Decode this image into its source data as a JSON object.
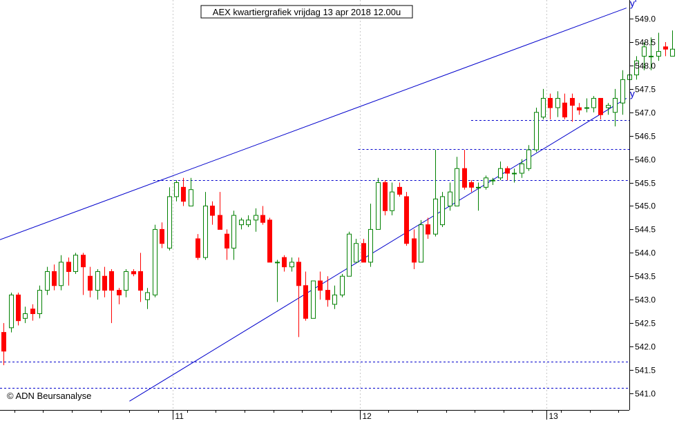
{
  "chart_data": {
    "type": "candlestick",
    "title": "AEX kwartiergrafiek vrijdag 13 apr 2018 12.00u",
    "credit": "© ADN Beursanalyse",
    "ylim": [
      540.85,
      549.4
    ],
    "y_ticks": [
      "541.0",
      "541.5",
      "542.0",
      "542.5",
      "543.0",
      "543.5",
      "544.0",
      "544.5",
      "545.0",
      "545.5",
      "546.0",
      "546.5",
      "547.0",
      "547.5",
      "548.0",
      "548.5",
      "549.0"
    ],
    "x_range": [
      -0.5,
      87
    ],
    "x_dates": [
      {
        "label": "11",
        "x": 23.5
      },
      {
        "label": "12",
        "x": 49.5
      },
      {
        "label": "13",
        "x": 75.5
      }
    ],
    "colors": {
      "up": "#008000",
      "down": "#ff0000",
      "trend": "#0000cc",
      "level": "#0000cc",
      "grid": "#c8c8c8"
    },
    "candles": [
      [
        542.3,
        541.9,
        542.5,
        541.6
      ],
      [
        542.4,
        543.1,
        543.15,
        542.3
      ],
      [
        543.1,
        542.55,
        543.15,
        542.45
      ],
      [
        542.6,
        542.7,
        542.85,
        542.5
      ],
      [
        542.8,
        542.7,
        542.9,
        542.55
      ],
      [
        542.7,
        543.2,
        543.3,
        542.6
      ],
      [
        543.2,
        543.6,
        543.7,
        543.1
      ],
      [
        543.6,
        543.3,
        543.75,
        543.2
      ],
      [
        543.3,
        543.8,
        543.95,
        543.2
      ],
      [
        543.8,
        543.6,
        543.9,
        543.3
      ],
      [
        543.6,
        543.95,
        544.0,
        543.55
      ],
      [
        543.95,
        543.7,
        544.0,
        543.1
      ],
      [
        543.5,
        543.2,
        543.7,
        543.05
      ],
      [
        543.2,
        543.6,
        543.65,
        543.0
      ],
      [
        543.5,
        543.2,
        543.7,
        543.05
      ],
      [
        543.6,
        543.2,
        543.65,
        542.5
      ],
      [
        543.2,
        543.1,
        543.25,
        542.9
      ],
      [
        543.2,
        543.6,
        543.65,
        543.05
      ],
      [
        543.6,
        543.55,
        543.65,
        543.5
      ],
      [
        543.6,
        543.2,
        544.0,
        542.95
      ],
      [
        543.0,
        543.15,
        543.25,
        542.8
      ],
      [
        543.1,
        544.5,
        544.6,
        543.05
      ],
      [
        544.5,
        544.2,
        544.65,
        544.1
      ],
      [
        544.1,
        545.2,
        545.4,
        544.05
      ],
      [
        545.2,
        545.5,
        545.55,
        545.1
      ],
      [
        545.4,
        545.1,
        545.6,
        545.0
      ],
      [
        545.0,
        545.35,
        545.6,
        545.0
      ],
      [
        544.3,
        543.9,
        544.4,
        543.85
      ],
      [
        543.9,
        545.0,
        545.3,
        543.85
      ],
      [
        545.0,
        544.8,
        545.1,
        544.6
      ],
      [
        544.8,
        544.5,
        545.3,
        544.5
      ],
      [
        544.4,
        544.1,
        544.5,
        543.85
      ],
      [
        544.1,
        544.8,
        544.9,
        543.85
      ],
      [
        544.6,
        544.7,
        544.75,
        544.5
      ],
      [
        544.6,
        544.7,
        544.8,
        544.55
      ],
      [
        544.7,
        544.8,
        544.95,
        544.45
      ],
      [
        544.8,
        544.65,
        545.0,
        544.6
      ],
      [
        544.7,
        543.8,
        544.75,
        543.8
      ],
      [
        543.8,
        543.8,
        543.85,
        542.95
      ],
      [
        543.9,
        543.7,
        543.95,
        543.6
      ],
      [
        543.7,
        543.8,
        543.9,
        543.6
      ],
      [
        543.8,
        543.3,
        543.9,
        542.2
      ],
      [
        543.3,
        542.6,
        543.6,
        542.55
      ],
      [
        542.6,
        543.4,
        543.4,
        542.6
      ],
      [
        543.4,
        543.2,
        543.6,
        543.0
      ],
      [
        543.2,
        543.0,
        543.5,
        542.85
      ],
      [
        542.9,
        543.1,
        543.3,
        542.8
      ],
      [
        543.1,
        543.5,
        543.55,
        543.05
      ],
      [
        543.5,
        544.4,
        544.45,
        543.5
      ],
      [
        543.8,
        544.2,
        544.3,
        543.8
      ],
      [
        544.2,
        543.8,
        544.3,
        543.8
      ],
      [
        543.8,
        544.5,
        545.05,
        543.7
      ],
      [
        544.5,
        545.5,
        545.6,
        544.5
      ],
      [
        545.5,
        544.9,
        545.55,
        544.8
      ],
      [
        544.9,
        545.3,
        545.5,
        544.8
      ],
      [
        545.4,
        545.25,
        545.5,
        545.2
      ],
      [
        545.2,
        544.2,
        545.3,
        544.15
      ],
      [
        544.3,
        543.8,
        544.5,
        543.65
      ],
      [
        543.8,
        544.6,
        544.7,
        543.8
      ],
      [
        544.6,
        544.4,
        544.75,
        544.3
      ],
      [
        544.4,
        545.15,
        546.2,
        544.35
      ],
      [
        544.6,
        545.2,
        545.3,
        544.55
      ],
      [
        545.0,
        545.3,
        545.5,
        544.9
      ],
      [
        545.0,
        545.8,
        546.05,
        545.0
      ],
      [
        545.8,
        545.4,
        546.2,
        545.35
      ],
      [
        545.5,
        545.4,
        545.55,
        545.3
      ],
      [
        545.4,
        545.4,
        545.5,
        544.9
      ],
      [
        545.4,
        545.6,
        545.65,
        545.35
      ],
      [
        545.55,
        545.55,
        545.6,
        545.45
      ],
      [
        545.6,
        545.8,
        545.95,
        545.55
      ],
      [
        545.8,
        545.7,
        545.85,
        545.55
      ],
      [
        545.7,
        545.7,
        545.8,
        545.5
      ],
      [
        545.7,
        545.9,
        546.0,
        545.6
      ],
      [
        545.8,
        546.2,
        546.3,
        545.75
      ],
      [
        546.2,
        547.0,
        547.1,
        546.15
      ],
      [
        546.9,
        547.3,
        547.5,
        546.85
      ],
      [
        547.3,
        547.1,
        547.4,
        546.85
      ],
      [
        547.1,
        547.3,
        547.45,
        546.9
      ],
      [
        547.2,
        546.9,
        547.4,
        546.85
      ],
      [
        547.3,
        547.15,
        547.4,
        546.8
      ],
      [
        547.1,
        547.05,
        547.2,
        546.95
      ],
      [
        547.1,
        547.1,
        547.3,
        547.0
      ],
      [
        547.1,
        547.3,
        547.35,
        547.0
      ],
      [
        547.3,
        546.95,
        547.3,
        546.85
      ],
      [
        547.1,
        547.15,
        547.2,
        546.95
      ],
      [
        547.0,
        547.3,
        547.5,
        546.7
      ],
      [
        547.2,
        547.7,
        547.9,
        546.95
      ],
      [
        547.7,
        547.8,
        547.95,
        547.65
      ],
      [
        547.8,
        548.1,
        548.2,
        547.7
      ],
      [
        548.2,
        548.4,
        548.5,
        547.9
      ],
      [
        548.2,
        548.2,
        548.6,
        547.9
      ],
      [
        548.2,
        548.3,
        548.7,
        548.1
      ],
      [
        548.4,
        548.35,
        548.5,
        548.2
      ],
      [
        548.2,
        548.35,
        548.75,
        548.2
      ],
      [
        548.3,
        547.9,
        548.4,
        547.8
      ],
      [
        547.9,
        548.3,
        548.45,
        547.85
      ],
      [
        548.3,
        548.0,
        548.6,
        547.9
      ],
      [
        548.2,
        547.7,
        548.3,
        547.7
      ],
      [
        547.7,
        548.2,
        548.3,
        547.65
      ],
      [
        548.2,
        548.1,
        548.25,
        548.0
      ],
      [
        548.3,
        548.3,
        548.35,
        548.2
      ],
      [
        548.3,
        547.85,
        548.35,
        547.7
      ],
      [
        547.9,
        547.8,
        548.0,
        547.7
      ],
      [
        547.9,
        548.05,
        548.15,
        547.85
      ],
      [
        548.1,
        547.9,
        548.15,
        547.85
      ],
      [
        547.8,
        547.75,
        547.9,
        547.7
      ],
      [
        547.75,
        548.3,
        548.55,
        547.7
      ]
    ],
    "trendlines": [
      {
        "label": "y'",
        "x0": -0.5,
        "y0": 544.28,
        "x1": 86.6,
        "y1": 549.23
      },
      {
        "label": "y",
        "x0": 17.5,
        "y0": 540.83,
        "x1": 86.6,
        "y1": 547.3
      }
    ],
    "levels": [
      {
        "y": 545.55,
        "x0": 20.8
      },
      {
        "y": 546.83,
        "x0": 65.0
      },
      {
        "y": 546.22,
        "x0": 49.3
      },
      {
        "y": 541.68,
        "x0": -0.5
      },
      {
        "y": 541.12,
        "x0": -0.5
      }
    ]
  }
}
